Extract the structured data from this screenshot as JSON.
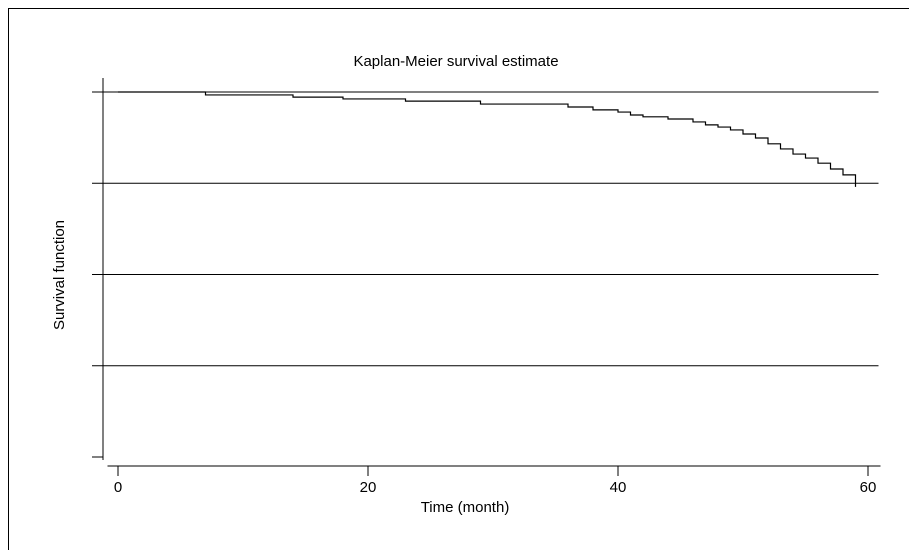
{
  "chart_data": {
    "type": "step",
    "title": "Kaplan-Meier survival estimate",
    "x_label": "Time (month)",
    "y_label": "Survival function",
    "x": [
      0,
      7,
      14,
      18,
      23,
      29,
      36,
      38,
      40,
      41,
      42,
      44,
      46,
      47,
      48,
      49,
      50,
      51,
      52,
      53,
      54,
      55,
      56,
      57,
      58,
      59
    ],
    "values": [
      1.0,
      0.992,
      0.986,
      0.981,
      0.975,
      0.967,
      0.959,
      0.951,
      0.945,
      0.937,
      0.932,
      0.926,
      0.918,
      0.91,
      0.904,
      0.896,
      0.885,
      0.874,
      0.858,
      0.844,
      0.83,
      0.819,
      0.805,
      0.789,
      0.773,
      0.74
    ],
    "color": "#000000",
    "xlim": [
      -1,
      61
    ],
    "xticks": [
      0,
      20,
      40,
      60
    ],
    "ylim": [
      0,
      1
    ],
    "yticks": [
      0,
      0.25,
      0.5,
      0.75,
      1
    ],
    "grid": true
  }
}
